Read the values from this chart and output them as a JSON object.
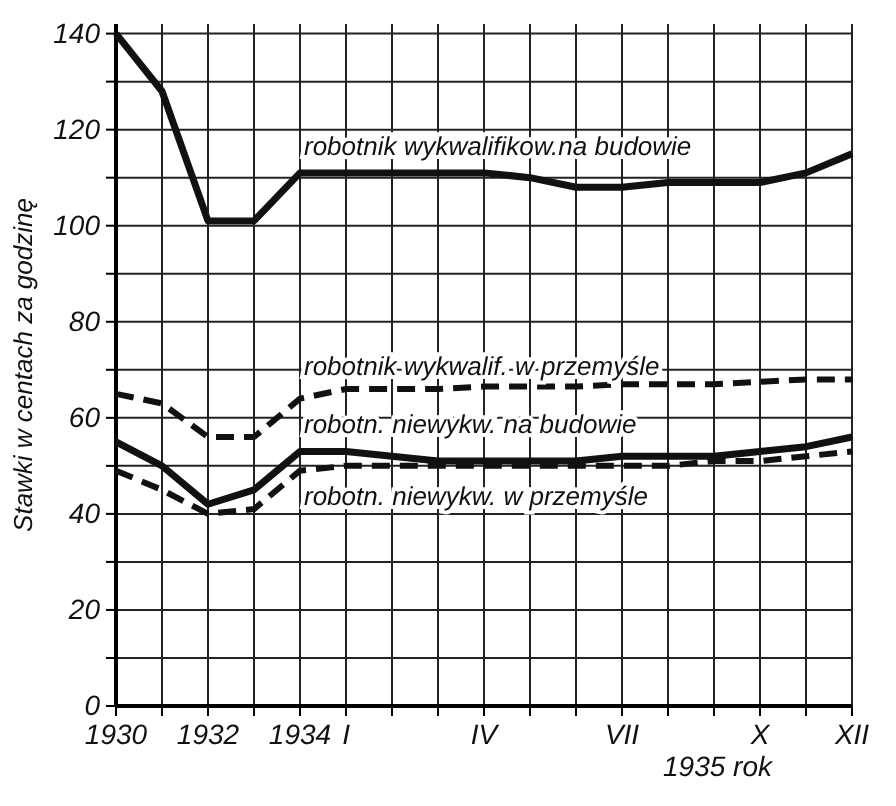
{
  "chart_data": {
    "type": "line",
    "ylabel": "Stawki w centach za godzinę",
    "xlabel": "1935 rok",
    "categories": [
      "1930",
      null,
      "1932",
      null,
      "1934",
      "I",
      null,
      null,
      "IV",
      null,
      null,
      "VII",
      null,
      null,
      "X",
      null,
      "XII"
    ],
    "ylim": [
      0,
      142
    ],
    "yticks": [
      0,
      {
        "value": 10,
        "label": null
      },
      20,
      {
        "value": 30,
        "label": null
      },
      40,
      {
        "value": 50,
        "label": null
      },
      60,
      {
        "value": 70,
        "label": null
      },
      80,
      {
        "value": 90,
        "label": null
      },
      100,
      {
        "value": 110,
        "label": null
      },
      120,
      {
        "value": 130,
        "label": null
      },
      140
    ],
    "grid": true,
    "marker": "none",
    "series": [
      {
        "name": "robotnik wykwalifikow.na budowie",
        "color": "#111111",
        "line_style": "solid",
        "values": [
          140,
          128,
          101,
          101,
          111,
          111,
          111,
          111,
          111,
          110,
          108,
          108,
          109,
          109,
          109,
          111,
          115
        ]
      },
      {
        "name": "robotnik wykwalif. w przemyśle",
        "color": "#111111",
        "line_style": "dashed",
        "values": [
          65,
          63,
          56,
          56,
          64,
          66,
          66,
          66,
          66.5,
          66.5,
          66.5,
          67,
          67,
          67,
          67.5,
          68,
          68
        ]
      },
      {
        "name": "robotn. niewykw. na budowie",
        "color": "#111111",
        "line_style": "solid",
        "values": [
          55,
          50,
          42,
          45,
          53,
          53,
          52,
          51,
          51,
          51,
          51,
          52,
          52,
          52,
          53,
          54,
          56
        ]
      },
      {
        "name": "robotn. niewykw. w przemyśle",
        "color": "#111111",
        "line_style": "dashed",
        "values": [
          49,
          45,
          40,
          41,
          49,
          50,
          50,
          50,
          50,
          50,
          50,
          50,
          50,
          51,
          51,
          52,
          53
        ]
      }
    ]
  }
}
